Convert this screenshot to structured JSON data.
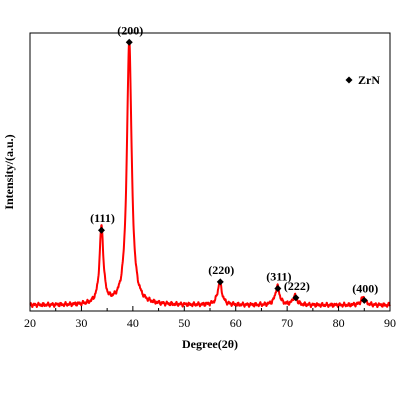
{
  "chart_data": {
    "type": "line",
    "xlabel": "Degree(2θ)",
    "ylabel": "Intensity/(a.u.)",
    "xlim": [
      20,
      90
    ],
    "xticks": [
      20,
      30,
      40,
      50,
      60,
      70,
      80,
      90
    ],
    "ylim": [
      0,
      1.05
    ],
    "yticks_shown": false,
    "grid": false,
    "line_color": "#ff0000",
    "legend": {
      "placement": "top-right",
      "entries": [
        {
          "label": "ZrN",
          "marker": "diamond",
          "marker_color": "#000000"
        }
      ]
    },
    "baseline": 0.022,
    "series": [
      {
        "peaks": [
          {
            "x": 33.9,
            "height": 0.29,
            "width": 0.45
          },
          {
            "x": 39.3,
            "height": 1.0,
            "width": 0.55
          },
          {
            "x": 56.9,
            "height": 0.085,
            "width": 0.5
          },
          {
            "x": 68.1,
            "height": 0.07,
            "width": 0.5
          },
          {
            "x": 71.5,
            "height": 0.035,
            "width": 0.45
          },
          {
            "x": 84.8,
            "height": 0.03,
            "width": 0.5
          }
        ]
      }
    ],
    "annotations": [
      {
        "label": "(111)",
        "x": 33.9,
        "marker_y": 0.305
      },
      {
        "label": "(200)",
        "x": 39.3,
        "marker_y": 1.015
      },
      {
        "label": "(220)",
        "x": 57.0,
        "marker_y": 0.11
      },
      {
        "label": "(311)",
        "x": 68.2,
        "marker_y": 0.085
      },
      {
        "label": "(222)",
        "x": 71.7,
        "marker_y": 0.05
      },
      {
        "label": "(400)",
        "x": 85.0,
        "marker_y": 0.04
      }
    ]
  }
}
